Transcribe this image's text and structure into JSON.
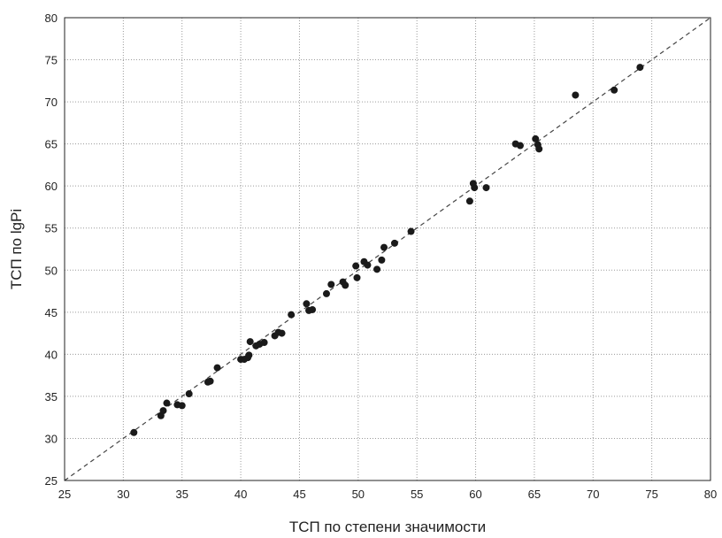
{
  "chart_data": {
    "type": "scatter",
    "title": "",
    "xlabel": "ТСП по степени значимости",
    "ylabel": "ТСП по lgPi",
    "xlim": [
      25,
      80
    ],
    "ylim": [
      25,
      80
    ],
    "xticks": [
      25,
      30,
      35,
      40,
      45,
      50,
      55,
      60,
      65,
      70,
      75,
      80
    ],
    "yticks": [
      25,
      30,
      35,
      40,
      45,
      50,
      55,
      60,
      65,
      70,
      75,
      80
    ],
    "grid": true,
    "reference_line": {
      "style": "dashed",
      "slope": 1,
      "intercept": 0
    },
    "series": [
      {
        "x": [
          30.9,
          33.2,
          33.4,
          33.7,
          34.6,
          35.0,
          35.6,
          37.2,
          37.4,
          38.0,
          40.0,
          40.3,
          40.6,
          40.7,
          40.8,
          41.3,
          41.6,
          42.0,
          42.9,
          43.2,
          43.5,
          44.3,
          45.6,
          45.8,
          46.1,
          47.3,
          47.7,
          48.7,
          48.9,
          49.8,
          49.9,
          50.5,
          50.8,
          51.6,
          52.0,
          52.2,
          53.1,
          54.5,
          59.5,
          59.8,
          59.9,
          60.9,
          63.4,
          63.8,
          65.1,
          65.3,
          65.4,
          68.5,
          71.8,
          74.0
        ],
        "y": [
          30.7,
          32.7,
          33.3,
          34.2,
          34.0,
          33.9,
          35.3,
          36.7,
          36.8,
          38.4,
          39.4,
          39.4,
          39.6,
          39.9,
          41.5,
          41.0,
          41.2,
          41.4,
          42.2,
          42.6,
          42.5,
          44.7,
          46.0,
          45.2,
          45.3,
          47.2,
          48.3,
          48.6,
          48.2,
          50.5,
          49.1,
          51.0,
          50.6,
          50.1,
          51.2,
          52.7,
          53.2,
          54.6,
          58.2,
          60.3,
          59.8,
          59.8,
          65.0,
          64.8,
          65.6,
          64.9,
          64.4,
          70.8,
          71.4,
          74.1
        ]
      }
    ]
  }
}
